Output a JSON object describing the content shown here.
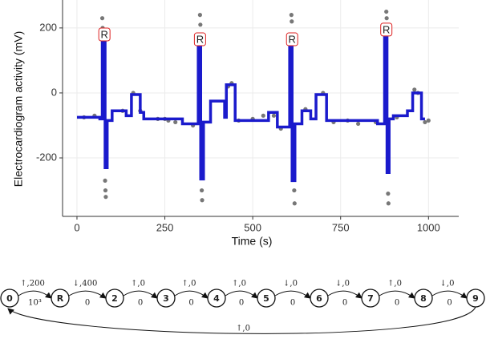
{
  "chart_data": {
    "type": "line",
    "xlabel": "Time (s)",
    "ylabel": "Electrocardiogram activity (mV)",
    "xlim": [
      -41,
      1086
    ],
    "ylim": [
      -380,
      286
    ],
    "xticks": [
      0,
      250,
      500,
      750,
      1000
    ],
    "yticks": [
      -200,
      0,
      200
    ],
    "grid": true,
    "series": [
      {
        "type": "scatter",
        "color": "#777777",
        "x": [
          72,
          73,
          74,
          80,
          81,
          82,
          350,
          351,
          355,
          356,
          610,
          611,
          618,
          619,
          880,
          881,
          885,
          886,
          130,
          160,
          180,
          230,
          260,
          330,
          440,
          430,
          500,
          530,
          560,
          580,
          650,
          700,
          730,
          800,
          850,
          910,
          960,
          970,
          1000,
          20,
          50,
          250,
          280,
          460,
          770,
          990
        ],
        "values": [
          230,
          200,
          180,
          -270,
          -300,
          -320,
          240,
          210,
          -300,
          -330,
          240,
          220,
          -300,
          -340,
          250,
          230,
          -310,
          -340,
          -55,
          0,
          -55,
          -80,
          -85,
          -100,
          30,
          20,
          -80,
          -70,
          -70,
          -110,
          -50,
          0,
          -90,
          -95,
          -90,
          -75,
          10,
          0,
          -85,
          -75,
          -70,
          -80,
          -90,
          -85,
          -85,
          -90
        ]
      },
      {
        "type": "line",
        "color": "#1a1acc",
        "x": [
          0,
          65,
          65,
          72,
          72,
          80,
          80,
          86,
          86,
          100,
          100,
          140,
          140,
          155,
          155,
          180,
          180,
          190,
          190,
          300,
          300,
          345,
          345,
          352,
          352,
          360,
          360,
          380,
          380,
          420,
          420,
          425,
          425,
          450,
          450,
          545,
          545,
          570,
          570,
          605,
          605,
          612,
          612,
          620,
          620,
          640,
          640,
          665,
          665,
          680,
          680,
          710,
          710,
          855,
          855,
          875,
          875,
          882,
          882,
          888,
          888,
          900,
          900,
          940,
          940,
          955,
          955,
          980,
          980,
          990
        ],
        "values": [
          -75,
          -75,
          -80,
          -80,
          165,
          165,
          -230,
          -230,
          -85,
          -85,
          -55,
          -55,
          -70,
          -70,
          -5,
          -5,
          -60,
          -60,
          -80,
          -80,
          -95,
          -95,
          150,
          150,
          -265,
          -265,
          -90,
          -90,
          -25,
          -25,
          -75,
          -75,
          25,
          25,
          -85,
          -85,
          -60,
          -60,
          -105,
          -105,
          160,
          160,
          -270,
          -270,
          -95,
          -95,
          -55,
          -55,
          -80,
          -80,
          -5,
          -5,
          -85,
          -85,
          -95,
          -95,
          170,
          170,
          -245,
          -245,
          -80,
          -80,
          -70,
          -70,
          -55,
          -55,
          0,
          0,
          -80,
          -80
        ]
      }
    ],
    "annotations": [
      {
        "label": "R",
        "x": 78,
        "y": 180,
        "color": "#dd2222"
      },
      {
        "label": "R",
        "x": 350,
        "y": 165,
        "color": "#dd2222"
      },
      {
        "label": "R",
        "x": 612,
        "y": 165,
        "color": "#dd2222"
      },
      {
        "label": "R",
        "x": 880,
        "y": 195,
        "color": "#dd2222"
      }
    ]
  },
  "diagram": {
    "nodes": [
      {
        "label": "0"
      },
      {
        "label": "R",
        "color": "#dd1111"
      },
      {
        "label": "2"
      },
      {
        "label": "3"
      },
      {
        "label": "4"
      },
      {
        "label": "5"
      },
      {
        "label": "6"
      },
      {
        "label": "7"
      },
      {
        "label": "8"
      },
      {
        "label": "9"
      }
    ],
    "edges": [
      {
        "top": "↑,200",
        "bottom": "10³"
      },
      {
        "top": "↓,400",
        "bottom": "0"
      },
      {
        "top": "↑,0",
        "bottom": "0"
      },
      {
        "top": "↑,0",
        "bottom": "0"
      },
      {
        "top": "↑,0",
        "bottom": "0"
      },
      {
        "top": "↓,0",
        "bottom": "0"
      },
      {
        "top": "↓,0",
        "bottom": "0"
      },
      {
        "top": "↑,0",
        "bottom": "0"
      },
      {
        "top": "↓,0",
        "bottom": "0"
      }
    ],
    "return_edge": "↑,0"
  }
}
